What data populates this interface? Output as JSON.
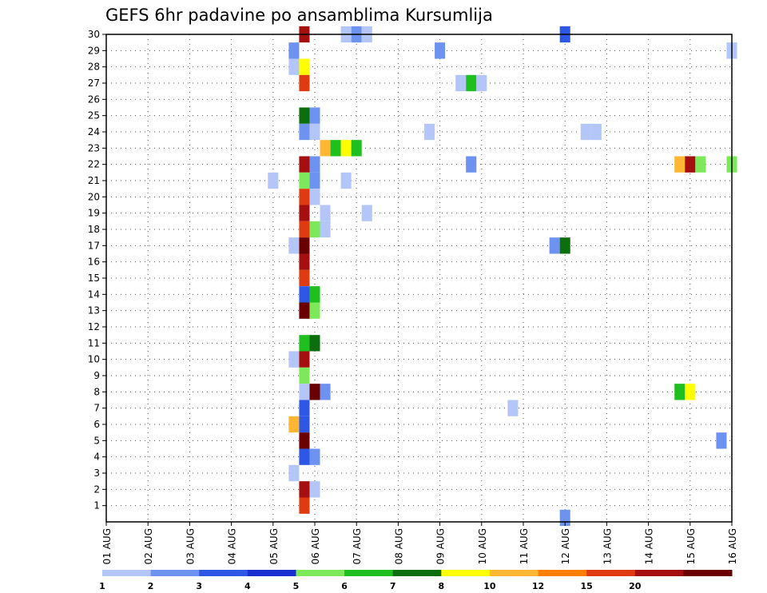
{
  "chart_data": {
    "type": "heatmap",
    "title": "GEFS 6hr padavine po ansamblima Kursumlija",
    "xlabel": "",
    "ylabel": "",
    "x_ticks": [
      "01 AUG",
      "02 AUG",
      "03 AUG",
      "04 AUG",
      "05 AUG",
      "06 AUG",
      "07 AUG",
      "08 AUG",
      "09 AUG",
      "10 AUG",
      "11 AUG",
      "12 AUG",
      "13 AUG",
      "14 AUG",
      "15 AUG",
      "16 AUG"
    ],
    "y_ticks": [
      "1",
      "2",
      "3",
      "4",
      "5",
      "6",
      "7",
      "8",
      "9",
      "10",
      "11",
      "12",
      "13",
      "14",
      "15",
      "16",
      "17",
      "18",
      "19",
      "20",
      "21",
      "22",
      "23",
      "24",
      "25",
      "26",
      "27",
      "28",
      "29",
      "30"
    ],
    "x_unit": "days since 01 AUG",
    "xlim": [
      0,
      15
    ],
    "ylim": [
      0,
      30
    ],
    "grid": true,
    "colorbar": {
      "labels": [
        "1",
        "2",
        "3",
        "4",
        "5",
        "6",
        "7",
        "8",
        "10",
        "12",
        "15",
        "20"
      ],
      "colors": [
        "#b3c6f7",
        "#6e92ef",
        "#2f57e6",
        "#1a2fcf",
        "#7de85a",
        "#1fbf1f",
        "#0d6e0d",
        "#ffff00",
        "#ffb733",
        "#ff8000",
        "#e03a10",
        "#a50f0f",
        "#6b0000"
      ]
    },
    "cells": [
      {
        "x": 4.75,
        "y": 30,
        "v": 20
      },
      {
        "x": 5.75,
        "y": 30,
        "v": 1
      },
      {
        "x": 6.0,
        "y": 30,
        "v": 2
      },
      {
        "x": 6.25,
        "y": 30,
        "v": 1
      },
      {
        "x": 11.0,
        "y": 30,
        "v": 3
      },
      {
        "x": 4.5,
        "y": 29,
        "v": 2
      },
      {
        "x": 8.0,
        "y": 29,
        "v": 2
      },
      {
        "x": 15.0,
        "y": 29,
        "v": 1
      },
      {
        "x": 4.5,
        "y": 28,
        "v": 1
      },
      {
        "x": 4.75,
        "y": 28,
        "v": 8
      },
      {
        "x": 4.75,
        "y": 27,
        "v": 15
      },
      {
        "x": 8.5,
        "y": 27,
        "v": 1
      },
      {
        "x": 8.75,
        "y": 27,
        "v": 6
      },
      {
        "x": 9.0,
        "y": 27,
        "v": 1
      },
      {
        "x": 4.75,
        "y": 25,
        "v": 7
      },
      {
        "x": 5.0,
        "y": 25,
        "v": 2
      },
      {
        "x": 4.75,
        "y": 24,
        "v": 2
      },
      {
        "x": 5.0,
        "y": 24,
        "v": 1
      },
      {
        "x": 7.75,
        "y": 24,
        "v": 1
      },
      {
        "x": 11.5,
        "y": 24,
        "v": 1
      },
      {
        "x": 11.75,
        "y": 24,
        "v": 1
      },
      {
        "x": 5.25,
        "y": 23,
        "v": 10
      },
      {
        "x": 5.5,
        "y": 23,
        "v": 6
      },
      {
        "x": 5.75,
        "y": 23,
        "v": 8
      },
      {
        "x": 6.0,
        "y": 23,
        "v": 6
      },
      {
        "x": 4.75,
        "y": 22,
        "v": 20
      },
      {
        "x": 5.0,
        "y": 22,
        "v": 2
      },
      {
        "x": 8.75,
        "y": 22,
        "v": 2
      },
      {
        "x": 13.75,
        "y": 22,
        "v": 10
      },
      {
        "x": 14.0,
        "y": 22,
        "v": 20
      },
      {
        "x": 14.25,
        "y": 22,
        "v": 5
      },
      {
        "x": 15.0,
        "y": 22,
        "v": 5
      },
      {
        "x": 4.0,
        "y": 21,
        "v": 1
      },
      {
        "x": 4.75,
        "y": 21,
        "v": 5
      },
      {
        "x": 5.0,
        "y": 21,
        "v": 2
      },
      {
        "x": 5.75,
        "y": 21,
        "v": 1
      },
      {
        "x": 4.75,
        "y": 20,
        "v": 15
      },
      {
        "x": 5.0,
        "y": 20,
        "v": 1
      },
      {
        "x": 4.75,
        "y": 19,
        "v": 20
      },
      {
        "x": 5.25,
        "y": 19,
        "v": 1
      },
      {
        "x": 6.25,
        "y": 19,
        "v": 1
      },
      {
        "x": 4.75,
        "y": 18,
        "v": 15
      },
      {
        "x": 5.0,
        "y": 18,
        "v": 5
      },
      {
        "x": 5.25,
        "y": 18,
        "v": 1
      },
      {
        "x": 4.5,
        "y": 17,
        "v": 1
      },
      {
        "x": 4.75,
        "y": 17,
        "v": 25
      },
      {
        "x": 10.75,
        "y": 17,
        "v": 2
      },
      {
        "x": 11.0,
        "y": 17,
        "v": 7
      },
      {
        "x": 4.75,
        "y": 16,
        "v": 20
      },
      {
        "x": 4.75,
        "y": 15,
        "v": 15
      },
      {
        "x": 4.75,
        "y": 14,
        "v": 3
      },
      {
        "x": 5.0,
        "y": 14,
        "v": 6
      },
      {
        "x": 4.75,
        "y": 13,
        "v": 25
      },
      {
        "x": 5.0,
        "y": 13,
        "v": 5
      },
      {
        "x": 4.75,
        "y": 11,
        "v": 6
      },
      {
        "x": 5.0,
        "y": 11,
        "v": 7
      },
      {
        "x": 4.5,
        "y": 10,
        "v": 1
      },
      {
        "x": 4.75,
        "y": 10,
        "v": 20
      },
      {
        "x": 4.75,
        "y": 9,
        "v": 5
      },
      {
        "x": 4.75,
        "y": 8,
        "v": 1
      },
      {
        "x": 5.0,
        "y": 8,
        "v": 25
      },
      {
        "x": 5.25,
        "y": 8,
        "v": 2
      },
      {
        "x": 13.75,
        "y": 8,
        "v": 6
      },
      {
        "x": 14.0,
        "y": 8,
        "v": 8
      },
      {
        "x": 4.75,
        "y": 7,
        "v": 3
      },
      {
        "x": 9.75,
        "y": 7,
        "v": 1
      },
      {
        "x": 4.5,
        "y": 6,
        "v": 10
      },
      {
        "x": 4.75,
        "y": 6,
        "v": 3
      },
      {
        "x": 4.75,
        "y": 5,
        "v": 25
      },
      {
        "x": 14.75,
        "y": 5,
        "v": 2
      },
      {
        "x": 4.75,
        "y": 4,
        "v": 3
      },
      {
        "x": 5.0,
        "y": 4,
        "v": 2
      },
      {
        "x": 4.5,
        "y": 3,
        "v": 1
      },
      {
        "x": 4.75,
        "y": 2,
        "v": 20
      },
      {
        "x": 5.0,
        "y": 2,
        "v": 1
      },
      {
        "x": 4.75,
        "y": 1,
        "v": 15
      },
      {
        "x": 11.0,
        "y": 0.25,
        "v": 2
      }
    ]
  }
}
